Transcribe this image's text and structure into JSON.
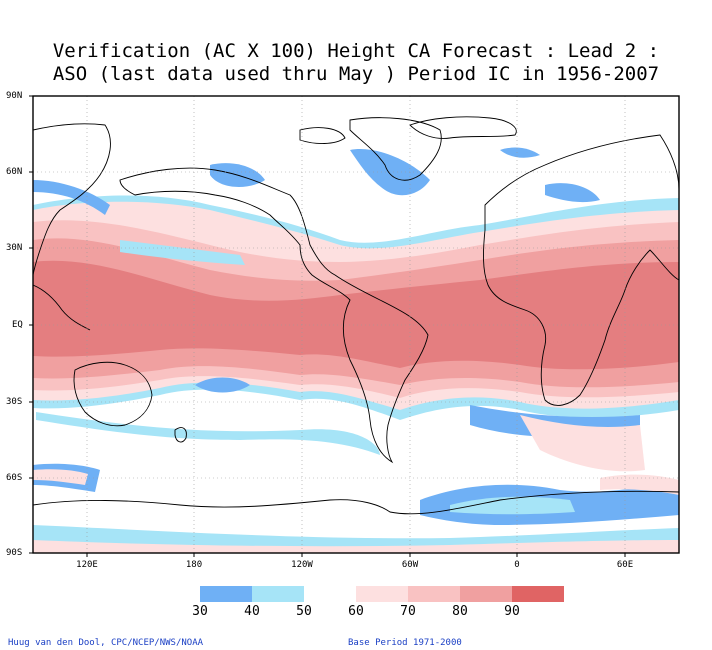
{
  "title": {
    "line1": "Verification (AC X 100) Height CA Forecast : Lead 2 :",
    "line2": "ASO (last data used thru May ) Period IC in 1956-2007"
  },
  "lat_labels": [
    "90N",
    "60N",
    "30N",
    "EQ",
    "30S",
    "60S",
    "90S"
  ],
  "lon_labels": [
    "120E",
    "180",
    "120W",
    "60W",
    "0",
    "60E"
  ],
  "colorbar": {
    "labels": [
      "30",
      "40",
      "50",
      "60",
      "70",
      "80",
      "90"
    ],
    "colors": [
      "#6fb0f5",
      "#a6e4f7",
      "#ffffff",
      "#fde0e0",
      "#f9c2c2",
      "#f0a0a0",
      "#e47e80",
      "#e06464"
    ]
  },
  "credits": {
    "left": "Huug van den Dool, CPC/NCEP/NWS/NOAA",
    "right": "Base Period 1971-2000"
  }
}
